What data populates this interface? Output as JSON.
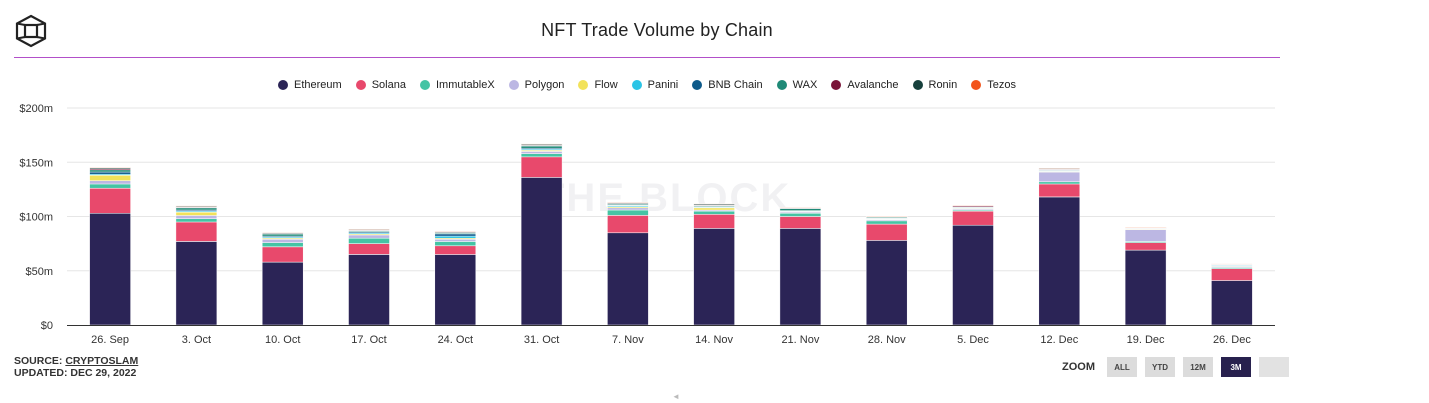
{
  "header": {
    "title": "NFT Trade Volume by Chain",
    "logo": "the-block-cube-logo"
  },
  "chart_data": {
    "type": "stacked-bar",
    "title": "NFT Trade Volume by Chain",
    "xlabel": "",
    "ylabel": "",
    "ylim": [
      0,
      200
    ],
    "yticks": [
      0,
      50,
      100,
      150,
      200
    ],
    "ytick_labels": [
      "$0",
      "$50m",
      "$100m",
      "$150m",
      "$200m"
    ],
    "grid": true,
    "legend_position": "top",
    "categories": [
      "26. Sep",
      "3. Oct",
      "10. Oct",
      "17. Oct",
      "24. Oct",
      "31. Oct",
      "7. Nov",
      "14. Nov",
      "21. Nov",
      "28. Nov",
      "5. Dec",
      "12. Dec",
      "19. Dec",
      "26. Dec"
    ],
    "series": [
      {
        "name": "Ethereum",
        "color": "#2b2456",
        "values": [
          103,
          77,
          58,
          65,
          65,
          136,
          85,
          89,
          89,
          78,
          92,
          118,
          69,
          41
        ]
      },
      {
        "name": "Solana",
        "color": "#e8496c",
        "values": [
          23,
          18,
          14,
          10,
          8,
          19,
          16,
          13,
          11,
          15,
          13,
          12,
          7,
          11
        ]
      },
      {
        "name": "ImmutableX",
        "color": "#45c4a4",
        "values": [
          4,
          3,
          4,
          5,
          4,
          3,
          5,
          3,
          3,
          3,
          1,
          2,
          1,
          1
        ]
      },
      {
        "name": "Polygon",
        "color": "#bcb7e3",
        "values": [
          3,
          3,
          3,
          3,
          2,
          2,
          2,
          1,
          1,
          1,
          1,
          9,
          11,
          1
        ]
      },
      {
        "name": "Flow",
        "color": "#f2e25a",
        "values": [
          5,
          3,
          1,
          1,
          1,
          1,
          1,
          2,
          0.5,
          0.5,
          0.5,
          0.5,
          0.5,
          0.5
        ]
      },
      {
        "name": "Panini",
        "color": "#2bc4e6",
        "values": [
          1,
          1,
          1,
          1,
          2,
          1,
          1,
          0.5,
          0.5,
          0.5,
          0.5,
          0.5,
          0.5,
          1
        ]
      },
      {
        "name": "BNB Chain",
        "color": "#0e5a8a",
        "values": [
          2,
          1,
          1,
          1,
          2,
          1,
          0.5,
          0.5,
          0.5,
          0.5,
          0.3,
          0.5,
          0.2,
          0.2
        ]
      },
      {
        "name": "WAX",
        "color": "#1f8a77",
        "values": [
          2,
          2,
          2,
          1,
          1,
          2,
          1,
          1,
          2,
          1,
          0.5,
          0.5,
          0.3,
          0.3
        ]
      },
      {
        "name": "Avalanche",
        "color": "#7a1438",
        "values": [
          1,
          0.5,
          0.3,
          0.3,
          0.3,
          0.5,
          0.5,
          0.3,
          0.3,
          0.3,
          1,
          0.5,
          0.3,
          0.2
        ]
      },
      {
        "name": "Ronin",
        "color": "#17403c",
        "values": [
          1,
          1,
          1,
          1,
          1,
          1,
          1,
          1,
          0.5,
          0.5,
          0.5,
          1,
          0.3,
          0.2
        ]
      },
      {
        "name": "Tezos",
        "color": "#f2541b",
        "values": [
          0.5,
          0.3,
          0.2,
          0.2,
          0.2,
          0.5,
          0.3,
          0.5,
          0.2,
          0.2,
          0.2,
          0.2,
          0.2,
          0.1
        ]
      }
    ]
  },
  "watermark": "THE BLOCK",
  "footer": {
    "source_label": "SOURCE: ",
    "source_name": "CRYPTOSLAM",
    "updated": "UPDATED: DEC 29, 2022"
  },
  "zoom": {
    "label": "ZOOM",
    "options": [
      "ALL",
      "YTD",
      "12M",
      "3M"
    ],
    "selected": "3M"
  }
}
